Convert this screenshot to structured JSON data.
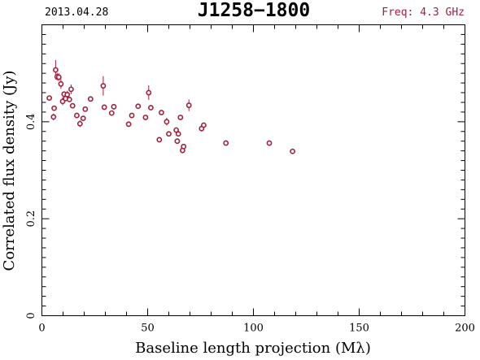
{
  "header": {
    "date": "2013.04.28",
    "source": "J1258−1800",
    "frequency": "Freq: 4.3 GHz"
  },
  "colors": {
    "points": "#a0203c",
    "axes": "#000000",
    "background": "#ffffff"
  },
  "chart_data": {
    "type": "scatter",
    "title": "J1258−1800",
    "xlabel": "Baseline length projection (Mλ)",
    "ylabel": "Correlated flux density (Jy)",
    "xlim": [
      0,
      200
    ],
    "ylim": [
      0,
      0.6
    ],
    "x_ticks": [
      0,
      50,
      100,
      150,
      200
    ],
    "y_ticks": [
      0,
      0.2,
      0.4
    ],
    "y_tick_labels": [
      "0",
      "0.2",
      "0.4"
    ],
    "grid": false,
    "marker": "open circle",
    "series": [
      {
        "x": [
          3.5,
          5.5,
          5.8,
          6.5,
          7.2,
          8.0,
          9.0,
          9.8,
          10.5,
          11.2,
          12.0,
          13.0,
          13.8,
          14.5,
          16.5,
          18.0,
          19.5,
          20.5,
          23.0,
          29.0,
          29.5,
          33.0,
          34.0,
          41.0,
          42.5,
          45.5,
          49.0,
          50.5,
          51.5,
          55.5,
          56.5,
          59.0,
          60.0,
          63.5,
          64.0,
          64.5,
          65.5,
          66.5,
          67.0,
          69.5,
          75.5,
          76.5,
          87.0,
          107.5,
          118.5
        ],
        "y": [
          0.449,
          0.41,
          0.428,
          0.507,
          0.493,
          0.492,
          0.478,
          0.442,
          0.457,
          0.448,
          0.456,
          0.446,
          0.467,
          0.433,
          0.413,
          0.396,
          0.407,
          0.426,
          0.447,
          0.474,
          0.43,
          0.418,
          0.431,
          0.395,
          0.413,
          0.432,
          0.409,
          0.46,
          0.429,
          0.363,
          0.419,
          0.4,
          0.375,
          0.383,
          0.36,
          0.375,
          0.409,
          0.341,
          0.349,
          0.434,
          0.386,
          0.393,
          0.356,
          0.356,
          0.339
        ],
        "yerr": [
          0.003,
          0.007,
          0.005,
          0.02,
          0.008,
          0.008,
          0.01,
          0.008,
          0.005,
          0.004,
          0.008,
          0.004,
          0.01,
          0.005,
          0.004,
          0.007,
          0.005,
          0.004,
          0.004,
          0.02,
          0.004,
          0.004,
          0.003,
          0.005,
          0.003,
          0.003,
          0.003,
          0.015,
          0.004,
          0.003,
          0.003,
          0.008,
          0.004,
          0.005,
          0.004,
          0.004,
          0.003,
          0.006,
          0.004,
          0.012,
          0.006,
          0.004,
          0.003,
          0.003,
          0.003
        ]
      }
    ]
  }
}
